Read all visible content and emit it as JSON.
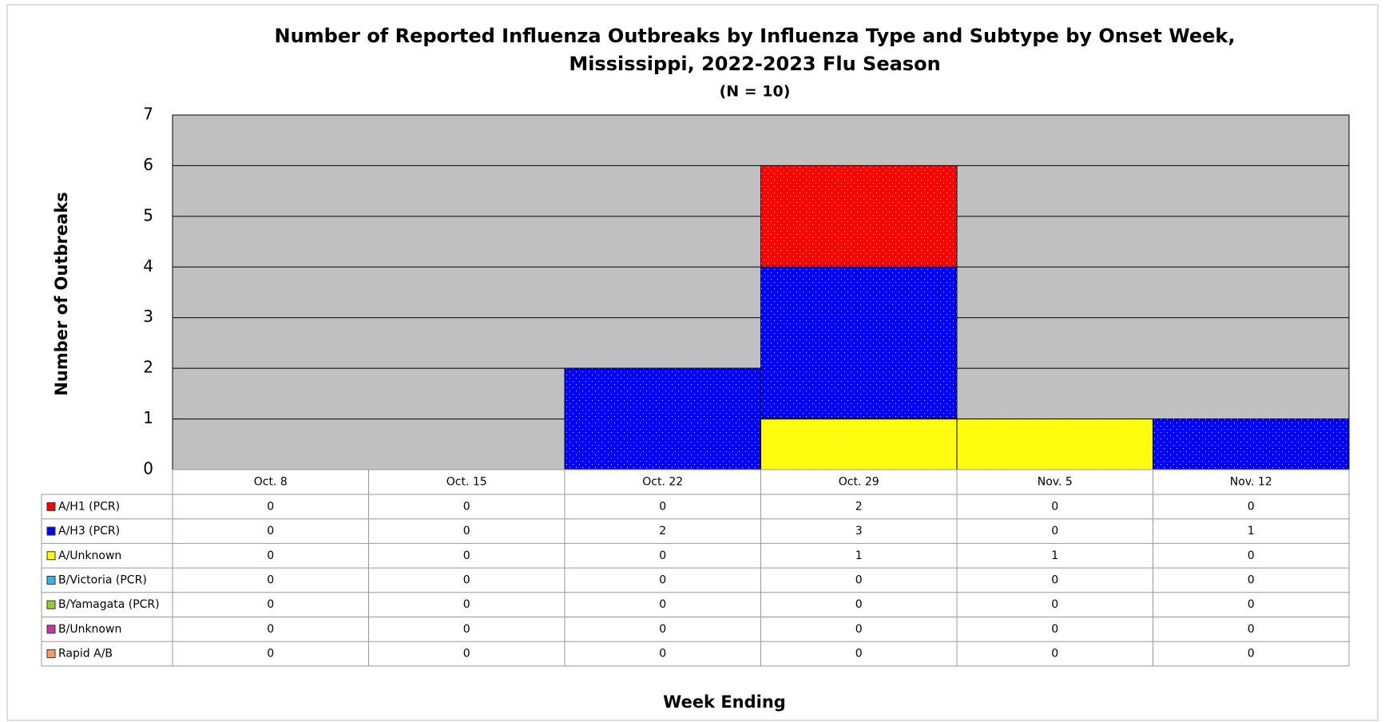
{
  "chart_data": {
    "type": "bar",
    "stacked": true,
    "title": "Number of Reported Influenza Outbreaks by Influenza Type and Subtype by Onset Week,",
    "title_line2": "Mississippi, 2022-2023 Flu Season",
    "subtitle": "(N = 10)",
    "y_label": "Number of Outbreaks",
    "x_label": "Week Ending",
    "categories": [
      "Oct. 8",
      "Oct. 15",
      "Oct. 22",
      "Oct. 29",
      "Nov. 5",
      "Nov. 12"
    ],
    "series": [
      {
        "name": "A/H1 (PCR)",
        "color": "#ff0000",
        "values": [
          0,
          0,
          0,
          2,
          0,
          0
        ]
      },
      {
        "name": "A/H3 (PCR)",
        "color": "#0000ff",
        "values": [
          0,
          0,
          2,
          3,
          0,
          1
        ]
      },
      {
        "name": "A/Unknown",
        "color": "#ffff00",
        "values": [
          0,
          0,
          0,
          1,
          1,
          0
        ]
      },
      {
        "name": "B/Victoria (PCR)",
        "color": "#33b5e5",
        "values": [
          0,
          0,
          0,
          0,
          0,
          0
        ]
      },
      {
        "name": "B/Yamagata (PCR)",
        "color": "#99cc33",
        "values": [
          0,
          0,
          0,
          0,
          0,
          0
        ]
      },
      {
        "name": "B/Unknown",
        "color": "#cc33aa",
        "values": [
          0,
          0,
          0,
          0,
          0,
          0
        ]
      },
      {
        "name": "Rapid A/B",
        "color": "#ff9966",
        "values": [
          0,
          0,
          0,
          0,
          0,
          0
        ]
      }
    ],
    "ylim": [
      0,
      7
    ],
    "yticks": [
      0,
      1,
      2,
      3,
      4,
      5,
      6,
      7
    ],
    "grid": true,
    "plot_background": "#c0c0c0"
  }
}
